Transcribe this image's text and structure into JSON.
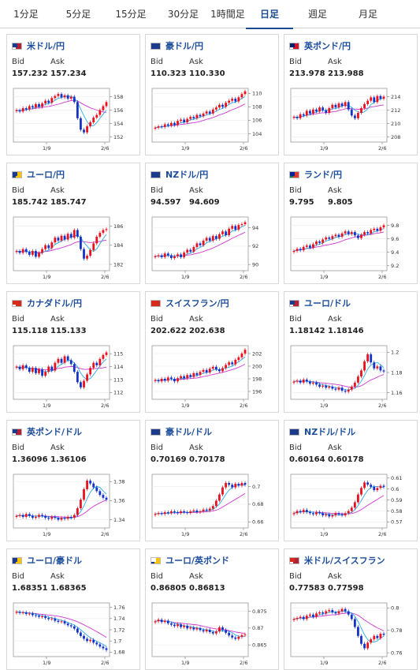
{
  "tabs": [
    {
      "label": "1分足",
      "active": false
    },
    {
      "label": "5分足",
      "active": false
    },
    {
      "label": "15分足",
      "active": false
    },
    {
      "label": "30分足",
      "active": false
    },
    {
      "label": "1時間足",
      "active": false
    },
    {
      "label": "日足",
      "active": true
    },
    {
      "label": "週足",
      "active": false
    },
    {
      "label": "月足",
      "active": false
    }
  ],
  "labels": {
    "bid": "Bid",
    "ask": "Ask",
    "date_a": "1/9",
    "date_b": "2/6"
  },
  "colors": {
    "up": "#e8111d",
    "down": "#1432c8",
    "ma_short": "#2aaee6",
    "ma_long": "#cf39cf",
    "name": "#1d4e9b"
  },
  "pairs": [
    {
      "name": "米ドル/円",
      "bid": "157.232",
      "ask": "157.234",
      "flag": [
        "#ffffff",
        "#b22234",
        "#1e3a8a"
      ],
      "chart_data": {
        "type": "candlestick",
        "y_ticks": [
          "158",
          "156",
          "154",
          "152"
        ],
        "ylim": [
          151.5,
          159
        ],
        "closes": [
          156,
          155.8,
          156.3,
          156.1,
          156.6,
          156.4,
          156.9,
          156.5,
          157.0,
          157.4,
          157.1,
          157.8,
          158.1,
          158.4,
          157.9,
          158.2,
          157.7,
          158.0,
          157.2,
          154.8,
          153.1,
          152.7,
          153.6,
          154.2,
          154.9,
          155.3,
          156.0,
          156.6,
          157.2
        ]
      }
    },
    {
      "name": "豪ドル/円",
      "bid": "110.323",
      "ask": "110.330",
      "flag": [
        "#1e3a8a",
        "#1e3a8a",
        "#1e3a8a"
      ],
      "chart_data": {
        "type": "candlestick",
        "y_ticks": [
          "110",
          "108",
          "106",
          "104"
        ],
        "ylim": [
          103,
          110.5
        ],
        "closes": [
          104.9,
          105.1,
          105.0,
          105.4,
          105.2,
          105.6,
          105.3,
          105.9,
          106.1,
          105.7,
          106.2,
          106.5,
          106.3,
          106.8,
          106.6,
          107.0,
          107.3,
          107.0,
          107.6,
          107.9,
          108.3,
          108.0,
          108.6,
          108.9,
          109.2,
          108.8,
          109.4,
          109.9,
          110.3
        ]
      }
    },
    {
      "name": "英ポンド/円",
      "bid": "213.978",
      "ask": "213.988",
      "flag": [
        "#ffffff",
        "#cf142b",
        "#012169"
      ],
      "chart_data": {
        "type": "candlestick",
        "y_ticks": [
          "214",
          "212",
          "210",
          "208"
        ],
        "ylim": [
          207.5,
          215
        ],
        "closes": [
          211.0,
          210.8,
          211.4,
          211.2,
          211.9,
          211.5,
          212.1,
          211.8,
          212.4,
          212.0,
          211.6,
          212.3,
          212.8,
          212.4,
          213.0,
          212.6,
          213.2,
          212.1,
          211.2,
          210.8,
          211.6,
          212.3,
          212.9,
          213.4,
          213.9,
          213.2,
          214.1,
          213.7,
          214.0
        ]
      }
    },
    {
      "name": "ユーロ/円",
      "bid": "185.742",
      "ask": "185.747",
      "flag": [
        "#1e3a8a",
        "#f5c400",
        "#1e3a8a"
      ],
      "chart_data": {
        "type": "candlestick",
        "y_ticks": [
          "186",
          "184",
          "182"
        ],
        "ylim": [
          181.5,
          186.8
        ],
        "closes": [
          183.4,
          183.2,
          183.6,
          183.3,
          183.0,
          183.4,
          182.8,
          183.2,
          183.6,
          184.0,
          183.7,
          184.3,
          184.8,
          184.5,
          185.0,
          184.6,
          185.2,
          184.8,
          185.6,
          184.9,
          183.6,
          182.6,
          182.9,
          183.5,
          184.2,
          184.9,
          185.3,
          185.6,
          185.7
        ]
      }
    },
    {
      "name": "NZドル/円",
      "bid": "94.597",
      "ask": "94.609",
      "flag": [
        "#1e3a8a",
        "#1e3a8a",
        "#1e3a8a"
      ],
      "chart_data": {
        "type": "candlestick",
        "y_ticks": [
          "94",
          "92",
          "90"
        ],
        "ylim": [
          89.5,
          95
        ],
        "closes": [
          90.9,
          91.0,
          90.8,
          91.2,
          91.0,
          90.7,
          90.9,
          91.1,
          90.8,
          91.3,
          91.6,
          91.4,
          91.9,
          92.3,
          92.1,
          92.6,
          92.9,
          92.6,
          93.1,
          92.8,
          93.3,
          93.6,
          93.2,
          93.9,
          94.2,
          93.8,
          94.3,
          94.4,
          94.6
        ]
      }
    },
    {
      "name": "ランド/円",
      "bid": "9.795",
      "ask": "9.805",
      "flag": [
        "#007a4d",
        "#de3831",
        "#002395"
      ],
      "chart_data": {
        "type": "candlestick",
        "y_ticks": [
          "9.8",
          "9.6",
          "9.4",
          "9.2"
        ],
        "ylim": [
          9.15,
          9.9
        ],
        "closes": [
          9.42,
          9.45,
          9.43,
          9.48,
          9.5,
          9.47,
          9.52,
          9.56,
          9.54,
          9.59,
          9.62,
          9.6,
          9.64,
          9.66,
          9.63,
          9.68,
          9.71,
          9.67,
          9.7,
          9.65,
          9.61,
          9.66,
          9.7,
          9.68,
          9.73,
          9.75,
          9.72,
          9.77,
          9.8
        ]
      }
    },
    {
      "name": "カナダドル/円",
      "bid": "115.118",
      "ask": "115.133",
      "flag": [
        "#ffffff",
        "#d52b1e",
        "#d52b1e"
      ],
      "chart_data": {
        "type": "candlestick",
        "y_ticks": [
          "115",
          "114",
          "113",
          "112"
        ],
        "ylim": [
          111.6,
          115.5
        ],
        "closes": [
          114.0,
          113.8,
          114.1,
          113.9,
          113.6,
          113.9,
          113.5,
          113.8,
          113.3,
          113.6,
          114.0,
          113.7,
          114.3,
          114.6,
          114.3,
          114.8,
          114.5,
          114.2,
          113.6,
          112.8,
          112.4,
          112.9,
          113.4,
          113.9,
          114.3,
          114.1,
          114.6,
          114.9,
          115.1
        ]
      }
    },
    {
      "name": "スイスフラン/円",
      "bid": "202.622",
      "ask": "202.638",
      "flag": [
        "#d52b1e",
        "#d52b1e",
        "#d52b1e"
      ],
      "chart_data": {
        "type": "candlestick",
        "y_ticks": [
          "202",
          "200",
          "198",
          "196"
        ],
        "ylim": [
          195,
          203
        ],
        "closes": [
          197.8,
          197.6,
          198.0,
          197.7,
          198.2,
          198.0,
          197.6,
          198.1,
          198.4,
          198.1,
          198.6,
          198.3,
          198.9,
          198.6,
          199.1,
          199.4,
          199.0,
          199.6,
          199.9,
          199.5,
          199.2,
          199.7,
          200.2,
          200.6,
          200.3,
          201.0,
          201.4,
          202.0,
          202.6
        ]
      }
    },
    {
      "name": "ユーロ/ドル",
      "bid": "1.18142",
      "ask": "1.18146",
      "flag": [
        "#ffffff",
        "#b22234",
        "#1e3a8a"
      ],
      "chart_data": {
        "type": "candlestick",
        "y_ticks": [
          "1.2",
          "1.18",
          "1.16"
        ],
        "ylim": [
          1.155,
          1.205
        ],
        "closes": [
          1.171,
          1.172,
          1.17,
          1.173,
          1.171,
          1.169,
          1.17,
          1.168,
          1.166,
          1.167,
          1.165,
          1.166,
          1.164,
          1.163,
          1.165,
          1.162,
          1.161,
          1.163,
          1.166,
          1.17,
          1.176,
          1.182,
          1.191,
          1.198,
          1.19,
          1.184,
          1.186,
          1.182,
          1.181
        ]
      }
    },
    {
      "name": "英ポンド/ドル",
      "bid": "1.36096",
      "ask": "1.36106",
      "flag": [
        "#ffffff",
        "#b22234",
        "#1e3a8a"
      ],
      "chart_data": {
        "type": "candlestick",
        "y_ticks": [
          "1.38",
          "1.36",
          "1.34"
        ],
        "ylim": [
          1.333,
          1.386
        ],
        "closes": [
          1.344,
          1.345,
          1.343,
          1.346,
          1.344,
          1.342,
          1.343,
          1.345,
          1.344,
          1.342,
          1.341,
          1.343,
          1.342,
          1.34,
          1.342,
          1.341,
          1.343,
          1.342,
          1.345,
          1.352,
          1.361,
          1.372,
          1.381,
          1.378,
          1.374,
          1.37,
          1.366,
          1.363,
          1.361
        ]
      }
    },
    {
      "name": "豪ドル/ドル",
      "bid": "0.70169",
      "ask": "0.70178",
      "flag": [
        "#1e3a8a",
        "#1e3a8a",
        "#1e3a8a"
      ],
      "chart_data": {
        "type": "candlestick",
        "y_ticks": [
          "0.7",
          "0.68",
          "0.66"
        ],
        "ylim": [
          0.655,
          0.712
        ],
        "closes": [
          0.669,
          0.67,
          0.669,
          0.671,
          0.67,
          0.672,
          0.671,
          0.67,
          0.672,
          0.671,
          0.67,
          0.672,
          0.673,
          0.671,
          0.672,
          0.674,
          0.673,
          0.675,
          0.678,
          0.684,
          0.691,
          0.699,
          0.704,
          0.702,
          0.699,
          0.703,
          0.701,
          0.704,
          0.702
        ]
      }
    },
    {
      "name": "NZドル/ドル",
      "bid": "0.60164",
      "ask": "0.60178",
      "flag": [
        "#1e3a8a",
        "#1e3a8a",
        "#1e3a8a"
      ],
      "chart_data": {
        "type": "candlestick",
        "y_ticks": [
          "0.61",
          "0.6",
          "0.59",
          "0.58",
          "0.57"
        ],
        "ylim": [
          0.566,
          0.612
        ],
        "closes": [
          0.578,
          0.58,
          0.579,
          0.581,
          0.579,
          0.578,
          0.577,
          0.579,
          0.578,
          0.576,
          0.577,
          0.575,
          0.576,
          0.578,
          0.577,
          0.576,
          0.578,
          0.58,
          0.583,
          0.588,
          0.595,
          0.601,
          0.606,
          0.604,
          0.602,
          0.599,
          0.601,
          0.603,
          0.602
        ]
      }
    },
    {
      "name": "ユーロ/豪ドル",
      "bid": "1.68351",
      "ask": "1.68365",
      "flag": [
        "#1e3a8a",
        "#f5c400",
        "#1e3a8a"
      ],
      "chart_data": {
        "type": "candlestick",
        "y_ticks": [
          "1.76",
          "1.74",
          "1.72",
          "1.7",
          "1.68"
        ],
        "ylim": [
          1.675,
          1.765
        ],
        "closes": [
          1.752,
          1.75,
          1.751,
          1.748,
          1.749,
          1.746,
          1.745,
          1.743,
          1.744,
          1.741,
          1.739,
          1.74,
          1.736,
          1.734,
          1.735,
          1.731,
          1.728,
          1.726,
          1.722,
          1.715,
          1.709,
          1.704,
          1.7,
          1.702,
          1.697,
          1.694,
          1.69,
          1.687,
          1.684
        ]
      }
    },
    {
      "name": "ユーロ/英ポンド",
      "bid": "0.86805",
      "ask": "0.86813",
      "flag": [
        "#1e3a8a",
        "#f5c400",
        "#ffffff"
      ],
      "chart_data": {
        "type": "candlestick",
        "y_ticks": [
          "0.875",
          "0.87",
          "0.865"
        ],
        "ylim": [
          0.862,
          0.877
        ],
        "closes": [
          0.872,
          0.8725,
          0.8718,
          0.8722,
          0.8714,
          0.871,
          0.8706,
          0.8711,
          0.8703,
          0.8707,
          0.8699,
          0.8702,
          0.8696,
          0.87,
          0.8694,
          0.869,
          0.8695,
          0.8688,
          0.8684,
          0.869,
          0.8702,
          0.8694,
          0.8686,
          0.8678,
          0.8672,
          0.8668,
          0.8674,
          0.8679,
          0.8681
        ]
      }
    },
    {
      "name": "米ドル/スイスフラン",
      "bid": "0.77583",
      "ask": "0.77598",
      "flag": [
        "#ffffff",
        "#b22234",
        "#d52b1e"
      ],
      "chart_data": {
        "type": "candlestick",
        "y_ticks": [
          "0.8",
          "0.78",
          "0.76"
        ],
        "ylim": [
          0.758,
          0.803
        ],
        "closes": [
          0.79,
          0.791,
          0.792,
          0.79,
          0.793,
          0.794,
          0.792,
          0.795,
          0.796,
          0.795,
          0.797,
          0.798,
          0.796,
          0.795,
          0.797,
          0.799,
          0.797,
          0.794,
          0.79,
          0.783,
          0.775,
          0.768,
          0.764,
          0.769,
          0.772,
          0.775,
          0.773,
          0.777,
          0.776
        ]
      }
    }
  ]
}
